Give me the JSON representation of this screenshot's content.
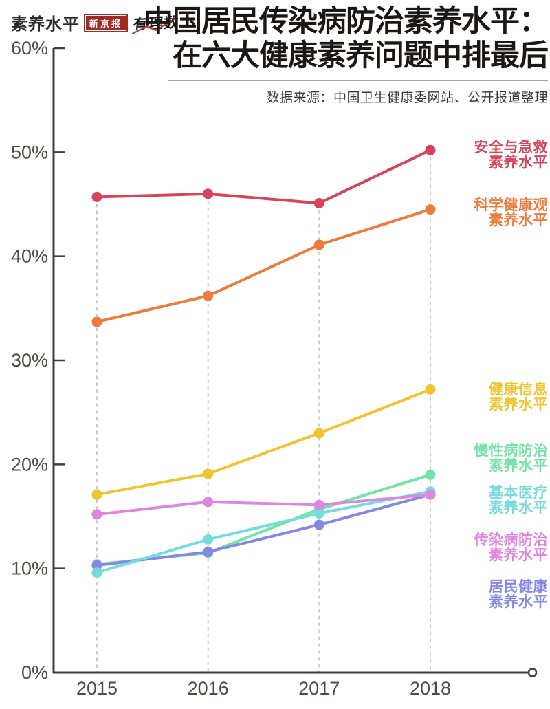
{
  "header": {
    "axis_title": "素养水平",
    "logo_xinjingbao": "新京报",
    "logo_youlishu": "有理数",
    "title_line1": "中国居民传染病防治素养水平：",
    "title_line2": "在六大健康素养问题中排最后",
    "source": "数据来源：中国卫生健康委网站、公开报道整理"
  },
  "colors": {
    "axis": "#3d3d3d",
    "tick_label": "#4f4a48",
    "grid_dashed": "#cbcbcb",
    "title": "#1c1713",
    "badge_red": "#9e2a23",
    "scribble_red": "#c0392b"
  },
  "chart_data": {
    "type": "line",
    "title": "中国居民传染病防治素养水平：在六大健康素养问题中排最后",
    "xlabel": "",
    "ylabel": "素养水平",
    "x": [
      "2015",
      "2016",
      "2017",
      "2018"
    ],
    "ylim": [
      0,
      60
    ],
    "yticks": [
      0,
      10,
      20,
      30,
      40,
      50,
      60
    ],
    "ytick_labels": [
      "0%",
      "10%",
      "20%",
      "30%",
      "40%",
      "50%",
      "60%"
    ],
    "grid": "vertical-dashed",
    "legend_position": "right",
    "series": [
      {
        "name": "安全与急救素养水平",
        "legend_lines": [
          "安全与急救",
          "素养水平"
        ],
        "color": "#d9435a",
        "values": [
          45.7,
          46.0,
          45.1,
          50.2
        ]
      },
      {
        "name": "科学健康观素养水平",
        "legend_lines": [
          "科学健康观",
          "素养水平"
        ],
        "color": "#ee7b3c",
        "values": [
          33.7,
          36.2,
          41.1,
          44.5
        ]
      },
      {
        "name": "健康信息素养水平",
        "legend_lines": [
          "健康信息",
          "素养水平"
        ],
        "color": "#f0c32f",
        "values": [
          17.1,
          19.1,
          23.0,
          27.2
        ]
      },
      {
        "name": "慢性病防治素养水平",
        "legend_lines": [
          "慢性病防治",
          "素养水平"
        ],
        "color": "#71e3a4",
        "values": [
          10.4,
          11.5,
          15.7,
          19.0
        ]
      },
      {
        "name": "基本医疗素养水平",
        "legend_lines": [
          "基本医疗",
          "素养水平"
        ],
        "color": "#73dddb",
        "values": [
          9.6,
          12.8,
          15.3,
          17.4
        ]
      },
      {
        "name": "传染病防治素养水平",
        "legend_lines": [
          "传染病防治",
          "素养水平"
        ],
        "color": "#de85e1",
        "values": [
          15.2,
          16.4,
          16.1,
          17.1
        ]
      },
      {
        "name": "居民健康素养水平",
        "legend_lines": [
          "居民健康",
          "素养水平"
        ],
        "color": "#8487e8",
        "values": [
          10.3,
          11.6,
          14.2,
          17.1
        ]
      }
    ]
  }
}
